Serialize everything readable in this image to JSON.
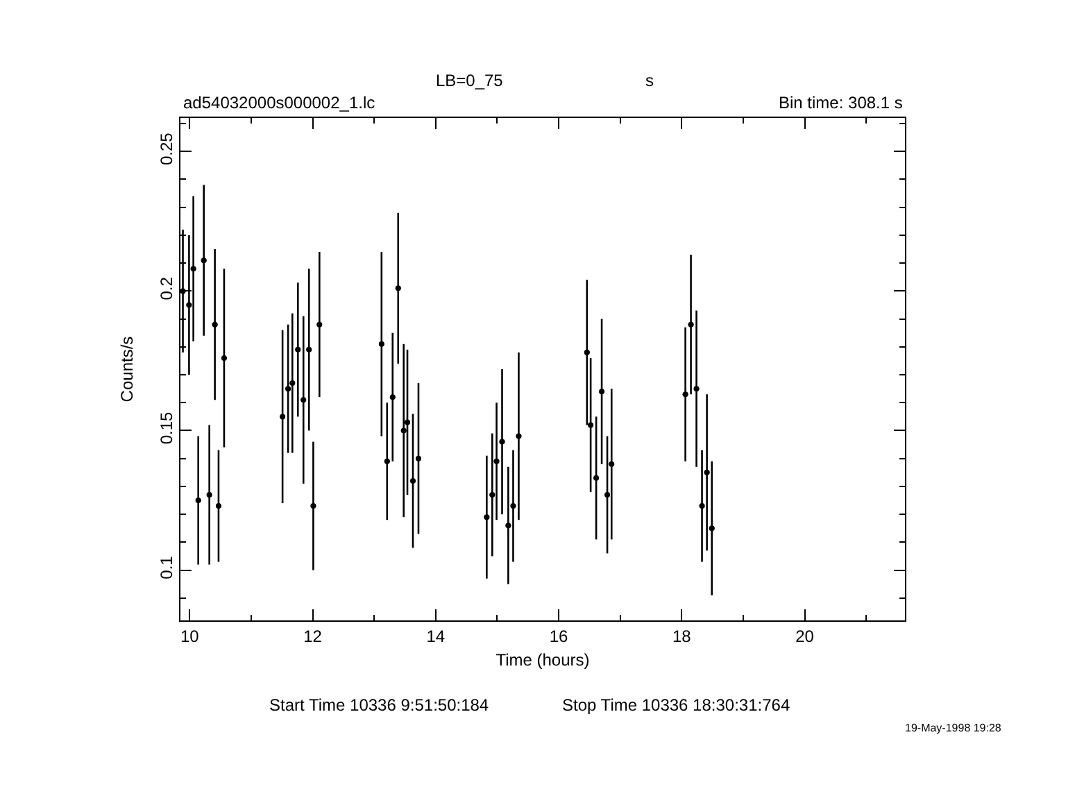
{
  "chart_data": {
    "type": "scatter",
    "title": "LB=0_75",
    "xlabel": "Time (hours)",
    "ylabel": "Counts/s",
    "annotations": [
      "s",
      "ad54032000s000002_1.lc",
      "Bin time: 308.1 s",
      "Start Time 10336 9:51:50:184",
      "Stop Time 10336 18:30:31:764",
      "19-May-1998 19:28"
    ],
    "x": [
      9.89,
      9.99,
      10.06,
      10.14,
      10.23,
      10.32,
      10.41,
      10.47,
      10.56,
      11.51,
      11.6,
      11.67,
      11.76,
      11.85,
      11.94,
      12.01,
      12.11,
      13.12,
      13.21,
      13.3,
      13.39,
      13.48,
      13.54,
      13.63,
      13.72,
      14.83,
      14.92,
      14.99,
      15.08,
      15.18,
      15.26,
      15.35,
      16.46,
      16.52,
      16.61,
      16.7,
      16.79,
      16.86,
      18.06,
      18.15,
      18.24,
      18.33,
      18.41,
      18.49
    ],
    "series": [
      {
        "color": "#000000",
        "values": [
          0.2,
          0.195,
          0.208,
          0.125,
          0.211,
          0.127,
          0.188,
          0.123,
          0.176,
          0.155,
          0.165,
          0.167,
          0.179,
          0.161,
          0.179,
          0.123,
          0.188,
          0.181,
          0.139,
          0.162,
          0.201,
          0.15,
          0.153,
          0.132,
          0.14,
          0.119,
          0.127,
          0.139,
          0.146,
          0.116,
          0.123,
          0.148,
          0.178,
          0.152,
          0.133,
          0.164,
          0.127,
          0.138,
          0.163,
          0.188,
          0.165,
          0.123,
          0.135,
          0.115
        ],
        "errors": [
          0.022,
          0.025,
          0.026,
          0.023,
          0.027,
          0.025,
          0.027,
          0.02,
          0.032,
          0.031,
          0.023,
          0.025,
          0.024,
          0.03,
          0.029,
          0.023,
          0.026,
          0.033,
          0.021,
          0.023,
          0.027,
          0.031,
          0.026,
          0.024,
          0.027,
          0.022,
          0.022,
          0.021,
          0.026,
          0.021,
          0.02,
          0.03,
          0.026,
          0.024,
          0.022,
          0.026,
          0.021,
          0.027,
          0.024,
          0.025,
          0.028,
          0.02,
          0.028,
          0.024
        ],
        "xerrors": [
          0.043,
          0.043,
          0.043,
          0.043,
          0.043,
          0.043,
          0.043,
          0.043,
          0.043,
          0.043,
          0.043,
          0.043,
          0.043,
          0.043,
          0.043,
          0.043,
          0.043,
          0.043,
          0.043,
          0.043,
          0.043,
          0.043,
          0.043,
          0.043,
          0.043,
          0.043,
          0.043,
          0.043,
          0.043,
          0.043,
          0.043,
          0.043,
          0.043,
          0.043,
          0.043,
          0.043,
          0.043,
          0.043,
          0.043,
          0.043,
          0.043,
          0.043,
          0.043,
          0.043
        ]
      }
    ],
    "xlim": [
      9.85,
      21.63
    ],
    "xticks": [
      10,
      12,
      14,
      16,
      18,
      20
    ],
    "ylim": [
      0.082,
      0.262
    ],
    "yticks": [
      0.1,
      0.15,
      0.2,
      0.25
    ],
    "grid": false
  }
}
